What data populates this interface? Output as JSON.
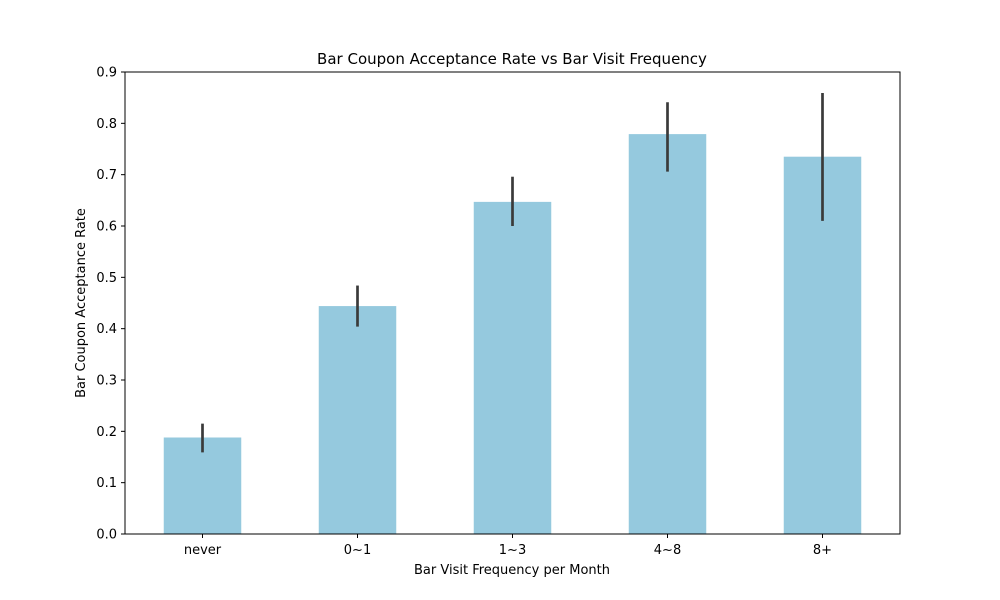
{
  "chart_data": {
    "type": "bar",
    "title": "Bar Coupon Acceptance Rate vs Bar Visit Frequency",
    "xlabel": "Bar Visit Frequency per Month",
    "ylabel": "Bar Coupon Acceptance Rate",
    "categories": [
      "never",
      "0~1",
      "1~3",
      "4~8",
      "8+"
    ],
    "values": [
      0.188,
      0.444,
      0.647,
      0.779,
      0.735
    ],
    "error_low": [
      0.159,
      0.404,
      0.6,
      0.706,
      0.61
    ],
    "error_high": [
      0.215,
      0.484,
      0.696,
      0.841,
      0.859
    ],
    "ylim": [
      0,
      0.9
    ],
    "yticks": [
      "0.0",
      "0.1",
      "0.2",
      "0.3",
      "0.4",
      "0.5",
      "0.6",
      "0.7",
      "0.8",
      "0.9"
    ],
    "grid": false,
    "bar_color": "#95c9de",
    "error_color": "#3a3a3a"
  }
}
